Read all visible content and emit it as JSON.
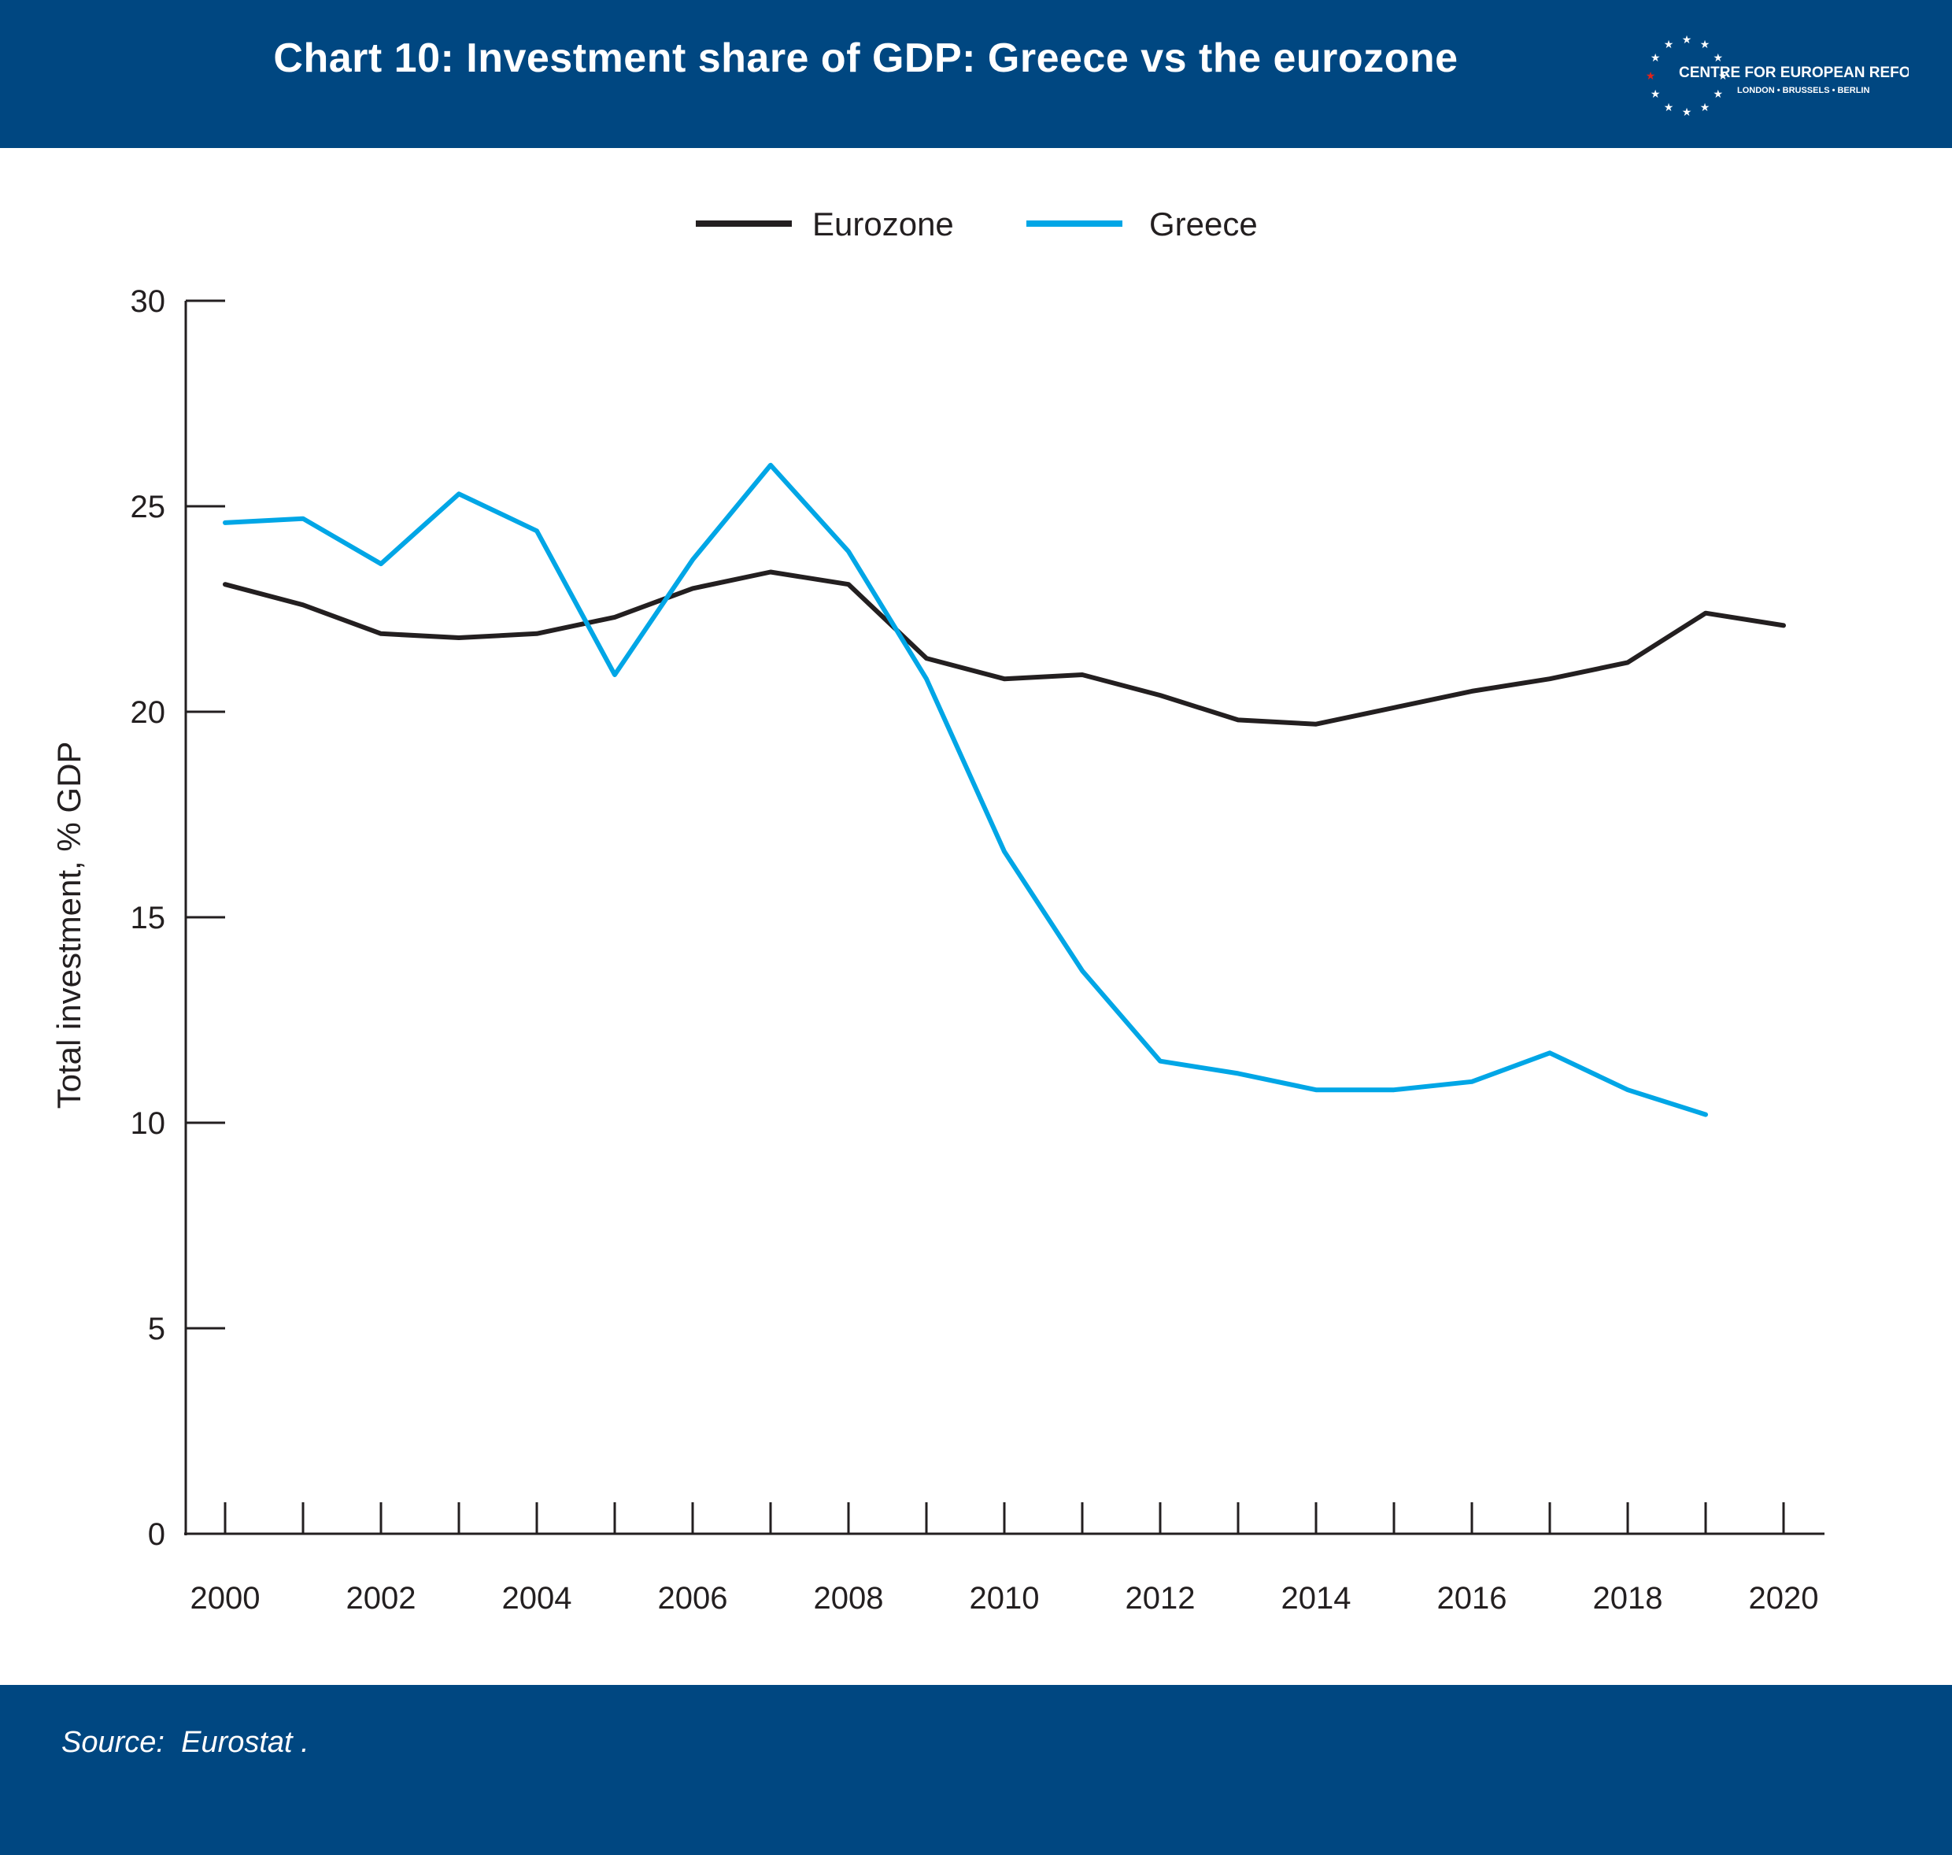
{
  "header": {
    "title": "Chart 10: Investment share of GDP: Greece vs the eurozone",
    "background": "#004781"
  },
  "logo": {
    "name": "CENTRE FOR EUROPEAN REFORM",
    "cities": [
      "LONDON",
      "BRUSSELS",
      "BERLIN"
    ],
    "star_color": "#ffffff",
    "accent_color": "#e2231a"
  },
  "footer": {
    "source_label": "Source:",
    "source_value": "Eurostat .",
    "background": "#004781"
  },
  "chart_data": {
    "type": "line",
    "title": "Chart 10: Investment share of GDP: Greece vs the eurozone",
    "xlabel": "",
    "ylabel": "Total investment, % GDP",
    "xlim": [
      2000,
      2020
    ],
    "ylim": [
      0,
      30
    ],
    "x_ticks": [
      2000,
      2002,
      2004,
      2006,
      2008,
      2010,
      2012,
      2014,
      2016,
      2018,
      2020
    ],
    "y_ticks": [
      0,
      5,
      10,
      15,
      20,
      25,
      30
    ],
    "grid": false,
    "legend_position": "top-center",
    "series": [
      {
        "name": "Eurozone",
        "color": "#231f20",
        "x": [
          2000,
          2001,
          2002,
          2003,
          2004,
          2005,
          2006,
          2007,
          2008,
          2009,
          2010,
          2011,
          2012,
          2013,
          2014,
          2015,
          2016,
          2017,
          2018,
          2019,
          2020
        ],
        "values": [
          23.1,
          22.6,
          21.9,
          21.8,
          21.9,
          22.3,
          23.0,
          23.4,
          23.1,
          21.3,
          20.8,
          20.9,
          20.4,
          19.8,
          19.7,
          20.1,
          20.5,
          20.8,
          21.2,
          22.4,
          22.1
        ]
      },
      {
        "name": "Greece",
        "color": "#00a6e6",
        "x": [
          2000,
          2001,
          2002,
          2003,
          2004,
          2005,
          2006,
          2007,
          2008,
          2009,
          2010,
          2011,
          2012,
          2013,
          2014,
          2015,
          2016,
          2017,
          2018,
          2019
        ],
        "values": [
          24.6,
          24.7,
          23.6,
          25.3,
          24.4,
          20.9,
          23.7,
          26.0,
          23.9,
          20.8,
          16.6,
          13.7,
          11.5,
          11.2,
          10.8,
          10.8,
          11.0,
          11.7,
          10.8,
          10.2
        ]
      }
    ]
  }
}
